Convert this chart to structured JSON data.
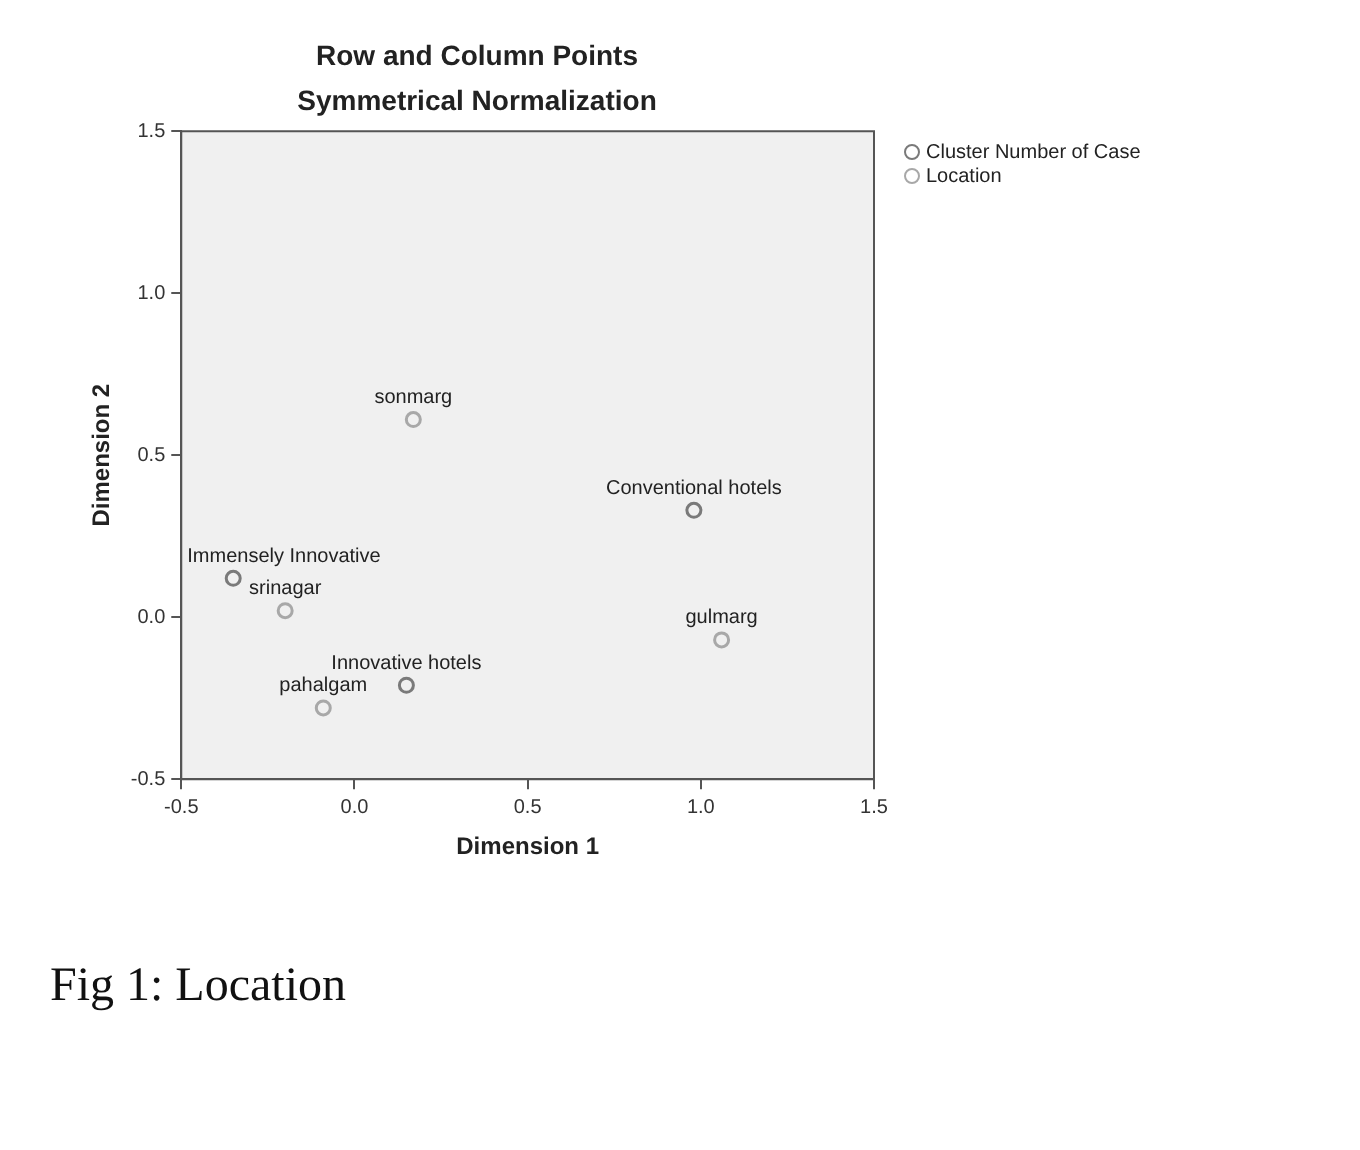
{
  "chart_data": {
    "type": "scatter",
    "title": "Row and Column Points",
    "subtitle": "Symmetrical Normalization",
    "xlabel": "Dimension 1",
    "ylabel": "Dimension 2",
    "series": [
      {
        "name": "Cluster Number of Case",
        "color": "#7a7a7a",
        "x": [
          0.98,
          -0.35,
          0.15
        ],
        "values": [
          0.33,
          0.12,
          -0.21
        ]
      },
      {
        "name": "Location",
        "color": "#a8a8a8",
        "x": [
          0.17,
          -0.2,
          -0.09,
          1.06
        ],
        "values": [
          0.61,
          0.02,
          -0.28,
          -0.07
        ]
      }
    ],
    "xlim": [
      -0.5,
      1.5
    ],
    "xticks": [
      {
        "value": -0.5,
        "label": "-0.5"
      },
      {
        "value": 0,
        "label": "0.0"
      },
      {
        "value": 0.5,
        "label": "0.5"
      },
      {
        "value": 1,
        "label": "1.0"
      },
      {
        "value": 1.5,
        "label": "1.5"
      }
    ],
    "ylim": [
      -0.5,
      1.5
    ],
    "yticks": [
      {
        "value": -0.5,
        "label": "-0.5"
      },
      {
        "value": 0,
        "label": "0.0"
      },
      {
        "value": 0.5,
        "label": "0.5"
      },
      {
        "value": 1,
        "label": "1.0"
      },
      {
        "value": 1.5,
        "label": "1.5"
      }
    ],
    "grid": false,
    "legend": "top right",
    "marker": "circle",
    "annotations": [
      {
        "text": "Conventional hotels",
        "x": 0.98,
        "y": 0.33
      },
      {
        "text": "Immensely Innovative",
        "x": -0.35,
        "y": 0.12
      },
      {
        "text": "Innovative hotels",
        "x": 0.15,
        "y": -0.21
      },
      {
        "text": "sonmarg",
        "x": 0.17,
        "y": 0.61
      },
      {
        "text": "srinagar",
        "x": -0.2,
        "y": 0.02
      },
      {
        "text": "pahalgam",
        "x": -0.09,
        "y": -0.28
      },
      {
        "text": "gulmarg",
        "x": 1.06,
        "y": -0.07
      },
      "Fig 1: Location"
    ]
  }
}
